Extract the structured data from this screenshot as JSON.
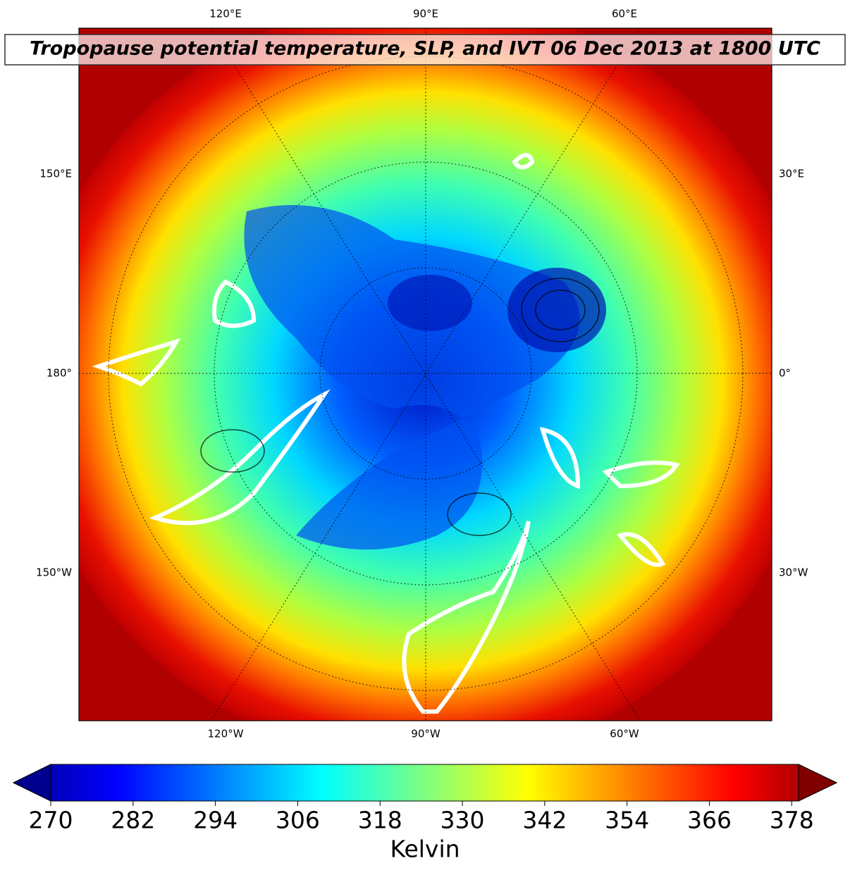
{
  "map": {
    "title": "Tropopause potential temperature, SLP, and IVT 06 Dec 2013 at 1800 UTC",
    "top_labels": [
      "120°E",
      "90°E",
      "60°E"
    ],
    "bottom_labels": [
      "120°W",
      "90°W",
      "60°W"
    ],
    "left_labels": [
      "150°E",
      "180°",
      "150°W"
    ],
    "right_labels": [
      "30°E",
      "0°",
      "30°W"
    ]
  },
  "colorbar": {
    "label": "Kelvin",
    "lim": [
      270,
      379
    ],
    "ticks": [
      270,
      282,
      294,
      306,
      318,
      330,
      342,
      354,
      366,
      378
    ]
  }
}
